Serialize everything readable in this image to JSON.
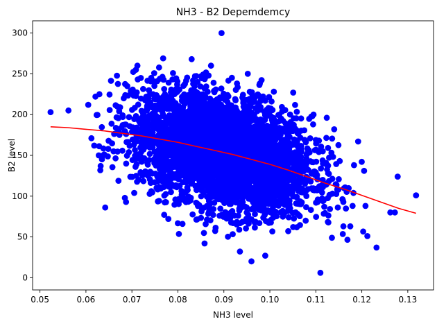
{
  "chart_data": {
    "type": "scatter",
    "title": "NH3 - B2 Depemdemcy",
    "xlabel": "NH3 level",
    "ylabel": "B2 level",
    "xlim": [
      0.0484,
      0.1356
    ],
    "ylim": [
      -15,
      315
    ],
    "x_ticks": [
      0.05,
      0.06,
      0.07,
      0.08,
      0.09,
      0.1,
      0.11,
      0.12,
      0.13
    ],
    "x_tick_labels": [
      "0.05",
      "0.06",
      "0.07",
      "0.08",
      "0.09",
      "0.10",
      "0.11",
      "0.12",
      "0.13"
    ],
    "y_ticks": [
      0,
      50,
      100,
      150,
      200,
      250,
      300
    ],
    "y_tick_labels": [
      "0",
      "50",
      "100",
      "150",
      "200",
      "250",
      "300"
    ],
    "grid": false,
    "legend": "none",
    "colors": {
      "points": "#0000ff",
      "fit": "#ff0000"
    },
    "cloud": {
      "approx_count": 4000,
      "x_mean": 0.09,
      "x_sd": 0.0095,
      "y_mean": 155,
      "y_sd": 36,
      "correlation": -0.35
    },
    "series": [
      {
        "kind": "points",
        "x": [
          0.0523,
          0.0562,
          0.0605,
          0.0612,
          0.0618,
          0.0628,
          0.0632,
          0.0642,
          0.066,
          0.0672,
          0.069,
          0.0705,
          0.0712,
          0.0742,
          0.0768,
          0.0785,
          0.081,
          0.083,
          0.0858,
          0.0872,
          0.0895,
          0.092,
          0.0935,
          0.0952,
          0.096,
          0.0985,
          0.099,
          0.1005,
          0.104,
          0.106,
          0.1095,
          0.111,
          0.1115,
          0.1135,
          0.114,
          0.1152,
          0.116,
          0.1175,
          0.118,
          0.1192,
          0.1205,
          0.1208,
          0.1212,
          0.1232,
          0.1262,
          0.1272,
          0.1278,
          0.1318
        ],
        "y": [
          203,
          205,
          212,
          171,
          162,
          150,
          137,
          86,
          155,
          178,
          235,
          104,
          260,
          245,
          269,
          105,
          66,
          268,
          42,
          260,
          300,
          67,
          32,
          250,
          20,
          220,
          27,
          180,
          57,
          180,
          200,
          6,
          155,
          49,
          182,
          143,
          63,
          63,
          88,
          167,
          131,
          88,
          51,
          37,
          80,
          80,
          124,
          101
        ]
      },
      {
        "kind": "fit",
        "x": [
          0.0523,
          0.056,
          0.06,
          0.064,
          0.068,
          0.072,
          0.076,
          0.08,
          0.084,
          0.088,
          0.092,
          0.096,
          0.1,
          0.104,
          0.108,
          0.112,
          0.116,
          0.12,
          0.124,
          0.128,
          0.1318
        ],
        "y": [
          185,
          184,
          182,
          180,
          177,
          174,
          170,
          166,
          161,
          156,
          151,
          145,
          139,
          132,
          124,
          116,
          109,
          101,
          93,
          85,
          79
        ]
      }
    ]
  }
}
